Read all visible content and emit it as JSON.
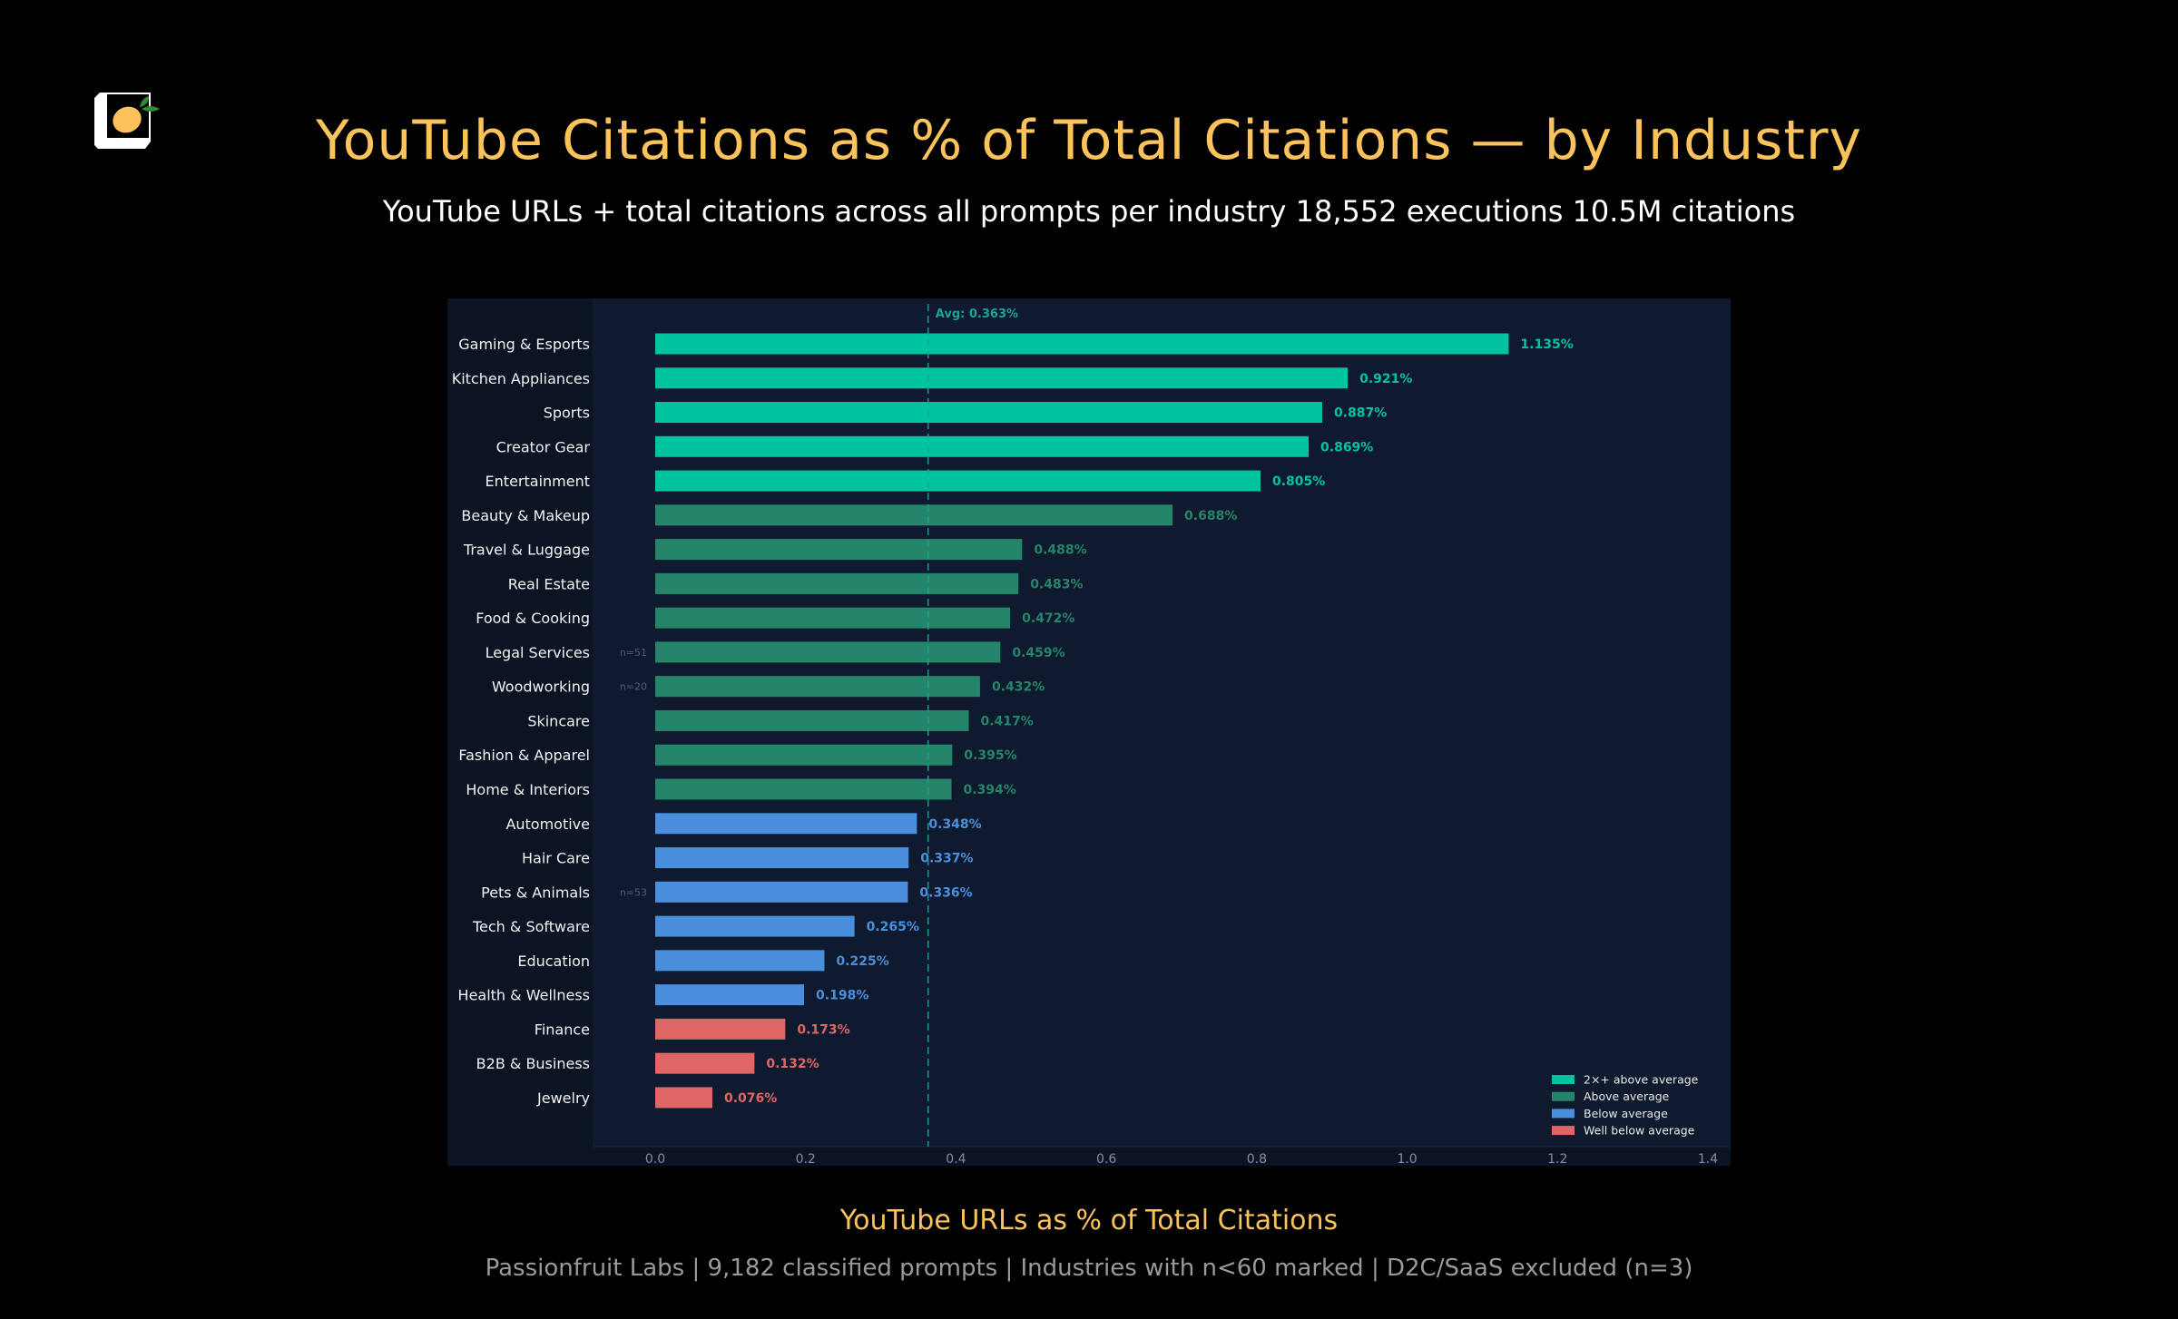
{
  "header": {
    "logo": "passionfruit-logo",
    "title": "YouTube Citations as % of Total Citations — by Industry",
    "subtitle": "YouTube URLs + total citations across all prompts per industry 18,552 executions 10.5M citations"
  },
  "footer": {
    "chart_caption": "YouTube URLs as % of Total Citations",
    "note": "Passionfruit Labs | 9,182 classified prompts | Industries with n<60 marked | D2C/SaaS excluded (n=3)"
  },
  "colors": {
    "background": "#000000",
    "panel": "#0c1424",
    "axes": "#0f1a2e",
    "title": "#fcc35a",
    "avg_line": "#1aa39a",
    "tick_label": "#7f8ea8",
    "category_label": "#f2f2f2",
    "n_label": "#4f5d74"
  },
  "chart_data": {
    "type": "bar",
    "orientation": "horizontal",
    "title": "YouTube Citations as % of Total Citations — by Industry",
    "xlabel": "YouTube URLs as % of Total Citations",
    "ylabel": "",
    "xlim": [
      0,
      1.4
    ],
    "xticks": [
      "0.0",
      "0.2",
      "0.4",
      "0.6",
      "0.8",
      "1.0",
      "1.2",
      "1.4"
    ],
    "xtick_values": [
      0,
      0.2,
      0.4,
      0.6,
      0.8,
      1.0,
      1.2,
      1.4
    ],
    "grid": false,
    "unit": "%",
    "average": {
      "value": 0.363,
      "label": "Avg: 0.363%"
    },
    "legend_position": "bottom-right",
    "legend": [
      {
        "key": "2x",
        "label": "2×+ above average",
        "color": "#00c4a0"
      },
      {
        "key": "above",
        "label": "Above average",
        "color": "#24856a"
      },
      {
        "key": "below",
        "label": "Below average",
        "color": "#4a8fdd"
      },
      {
        "key": "well_below",
        "label": "Well below average",
        "color": "#e06666"
      }
    ],
    "categories": [
      "Gaming & Esports",
      "Kitchen Appliances",
      "Sports",
      "Creator Gear",
      "Entertainment",
      "Beauty & Makeup",
      "Travel & Luggage",
      "Real Estate",
      "Food & Cooking",
      "Legal Services",
      "Woodworking",
      "Skincare",
      "Fashion & Apparel",
      "Home & Interiors",
      "Automotive",
      "Hair Care",
      "Pets & Animals",
      "Tech & Software",
      "Education",
      "Health & Wellness",
      "Finance",
      "B2B & Business",
      "Jewelry"
    ],
    "values": [
      1.135,
      0.921,
      0.887,
      0.869,
      0.805,
      0.688,
      0.488,
      0.483,
      0.472,
      0.459,
      0.432,
      0.417,
      0.395,
      0.394,
      0.348,
      0.337,
      0.336,
      0.265,
      0.225,
      0.198,
      0.173,
      0.132,
      0.076
    ],
    "value_labels": [
      "1.135%",
      "0.921%",
      "0.887%",
      "0.869%",
      "0.805%",
      "0.688%",
      "0.488%",
      "0.483%",
      "0.472%",
      "0.459%",
      "0.432%",
      "0.417%",
      "0.395%",
      "0.394%",
      "0.348%",
      "0.337%",
      "0.336%",
      "0.265%",
      "0.225%",
      "0.198%",
      "0.173%",
      "0.132%",
      "0.076%"
    ],
    "groups": [
      "2x",
      "2x",
      "2x",
      "2x",
      "2x",
      "above",
      "above",
      "above",
      "above",
      "above",
      "above",
      "above",
      "above",
      "above",
      "below",
      "below",
      "below",
      "below",
      "below",
      "below",
      "well_below",
      "well_below",
      "well_below"
    ],
    "sample_notes": [
      "",
      "",
      "",
      "",
      "",
      "",
      "",
      "",
      "",
      "n=51",
      "n=20",
      "",
      "",
      "",
      "",
      "",
      "n=53",
      "",
      "",
      "",
      "",
      "",
      ""
    ]
  }
}
